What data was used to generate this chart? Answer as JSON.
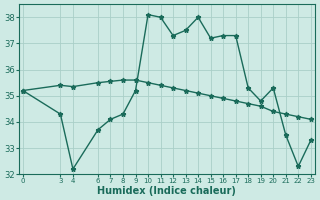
{
  "xlabel": "Humidex (Indice chaleur)",
  "background_color": "#ceeae4",
  "grid_color": "#aacfc8",
  "line_color": "#1a6b5a",
  "line1_x": [
    0,
    3,
    4,
    6,
    7,
    8,
    9,
    10,
    11,
    12,
    13,
    14,
    15,
    16,
    17,
    18,
    19,
    20,
    21,
    22,
    23
  ],
  "line1_y": [
    35.2,
    34.3,
    32.2,
    33.7,
    34.1,
    34.3,
    35.2,
    38.1,
    38.0,
    37.3,
    37.5,
    38.0,
    37.2,
    37.3,
    37.3,
    35.3,
    34.8,
    35.3,
    33.5,
    32.3,
    33.3
  ],
  "line2_x": [
    0,
    3,
    4,
    6,
    7,
    8,
    9,
    10,
    11,
    12,
    13,
    14,
    15,
    16,
    17,
    18,
    19,
    20,
    21,
    22,
    23
  ],
  "line2_y": [
    35.2,
    35.4,
    35.35,
    35.5,
    35.55,
    35.6,
    35.6,
    35.5,
    35.4,
    35.3,
    35.2,
    35.1,
    35.0,
    34.9,
    34.8,
    34.7,
    34.6,
    34.4,
    34.3,
    34.2,
    34.1
  ],
  "ylim": [
    32,
    38.5
  ],
  "xlim": [
    -0.3,
    23.3
  ],
  "yticks": [
    32,
    33,
    34,
    35,
    36,
    37,
    38
  ],
  "xticks": [
    0,
    3,
    4,
    6,
    7,
    8,
    9,
    10,
    11,
    12,
    13,
    14,
    15,
    16,
    17,
    18,
    19,
    20,
    21,
    22,
    23
  ],
  "marker": "*",
  "marker_size": 3.5,
  "linewidth": 1.0
}
